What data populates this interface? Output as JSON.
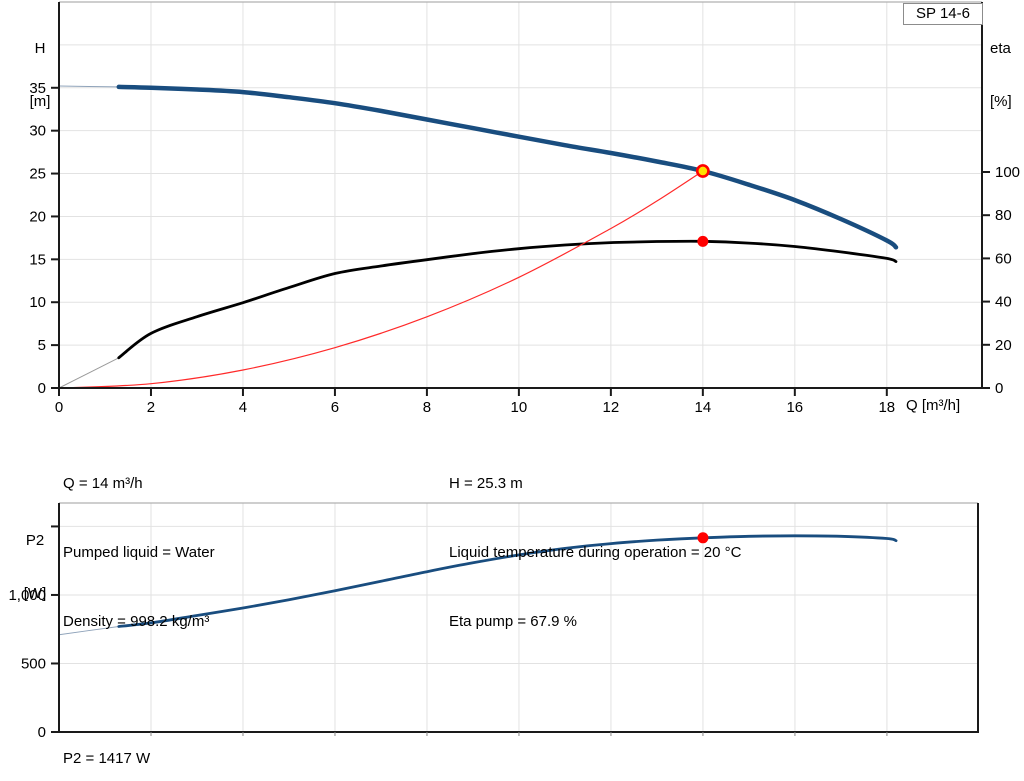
{
  "badge_label": "SP 14-6",
  "axis_titles": {
    "head_left": [
      "H",
      "[m]"
    ],
    "head_right": [
      "eta",
      "[%]"
    ],
    "head_x": "Q [m³/h]",
    "p2_left": [
      "P2",
      "[W]"
    ]
  },
  "annotations": {
    "left": [
      "Q = 14 m³/h",
      "Pumped liquid = Water",
      "Density = 998.2 kg/m³"
    ],
    "right": [
      "H = 25.3 m",
      "Liquid temperature during operation = 20 °C",
      "Eta pump = 67.9 %"
    ],
    "p2_result": "P2 = 1417 W"
  },
  "colors": {
    "curve_blue": "#194d7f",
    "curve_thin": "#8fa3ba",
    "curve_black": "#000000",
    "curve_black_thin": "#9a9a9a",
    "system_red": "#ff2a2a",
    "marker_red": "#ff0000",
    "marker_yellow": "#ffe000",
    "gridline": "#e2e2e2",
    "plot_top_border": "#b0b0b0",
    "axis": "#1a1a1a"
  },
  "chart_data": [
    {
      "type": "line",
      "title": "SP 14-6",
      "x": {
        "label": "Q [m³/h]",
        "min": 0,
        "max": 20.07,
        "show_tick_labels": true,
        "ticks": [
          {
            "v": 0,
            "t": "0"
          },
          {
            "v": 2,
            "t": "2"
          },
          {
            "v": 4,
            "t": "4"
          },
          {
            "v": 6,
            "t": "6"
          },
          {
            "v": 8,
            "t": "8"
          },
          {
            "v": 10,
            "t": "10"
          },
          {
            "v": 12,
            "t": "12"
          },
          {
            "v": 14,
            "t": "14"
          },
          {
            "v": 16,
            "t": "16"
          },
          {
            "v": 18,
            "t": "18"
          }
        ],
        "grid": [
          2,
          4,
          6,
          8,
          10,
          12,
          14,
          16,
          18
        ]
      },
      "left": {
        "label": "H [m]",
        "min": 0,
        "max": 45,
        "ticks": [
          {
            "v": 0,
            "t": "0"
          },
          {
            "v": 5,
            "t": "5"
          },
          {
            "v": 10,
            "t": "10"
          },
          {
            "v": 15,
            "t": "15"
          },
          {
            "v": 20,
            "t": "20"
          },
          {
            "v": 25,
            "t": "25"
          },
          {
            "v": 30,
            "t": "30"
          },
          {
            "v": 35,
            "t": "35"
          }
        ],
        "grid": [
          5,
          10,
          15,
          20,
          25,
          30,
          35,
          40
        ]
      },
      "right": {
        "label": "eta [%]",
        "min": 0,
        "max": 178.7,
        "ticks": [
          {
            "v": 0,
            "t": "0"
          },
          {
            "v": 20,
            "t": "20"
          },
          {
            "v": 40,
            "t": "40"
          },
          {
            "v": 60,
            "t": "60"
          },
          {
            "v": 80,
            "t": "80"
          },
          {
            "v": 100,
            "t": "100"
          }
        ],
        "grid": []
      },
      "series": [
        {
          "name": "head-curve",
          "axis": "left",
          "color": "#194d7f",
          "thin_color": "#8fa3ba",
          "width": 4.5,
          "thin_until": 1.3,
          "points": [
            [
              0,
              35.2
            ],
            [
              1.3,
              35.1
            ],
            [
              2,
              35.0
            ],
            [
              3,
              34.8
            ],
            [
              4,
              34.5
            ],
            [
              5,
              33.9
            ],
            [
              6,
              33.2
            ],
            [
              7,
              32.3
            ],
            [
              8,
              31.3
            ],
            [
              9,
              30.3
            ],
            [
              10,
              29.3
            ],
            [
              11,
              28.3
            ],
            [
              12,
              27.4
            ],
            [
              13,
              26.4
            ],
            [
              14,
              25.3
            ],
            [
              15,
              23.7
            ],
            [
              16,
              21.9
            ],
            [
              17,
              19.7
            ],
            [
              18,
              17.2
            ],
            [
              18.2,
              16.4
            ]
          ]
        },
        {
          "name": "eta-curve",
          "axis": "right",
          "color": "#000000",
          "thin_color": "#9a9a9a",
          "width": 2.8,
          "thin_until": 1.3,
          "points": [
            [
              0,
              0
            ],
            [
              1.3,
              14
            ],
            [
              2,
              25.3
            ],
            [
              3,
              33
            ],
            [
              4,
              39.5
            ],
            [
              5,
              46.5
            ],
            [
              6,
              53
            ],
            [
              7,
              56.5
            ],
            [
              8,
              59.4
            ],
            [
              9,
              62.2
            ],
            [
              10,
              64.5
            ],
            [
              11,
              66.2
            ],
            [
              12,
              67.3
            ],
            [
              13,
              67.8
            ],
            [
              14,
              67.9
            ],
            [
              15,
              67.1
            ],
            [
              16,
              65.5
            ],
            [
              17,
              63
            ],
            [
              18,
              60
            ],
            [
              18.2,
              58.5
            ]
          ]
        },
        {
          "name": "system-curve",
          "axis": "left",
          "color": "#ff2a2a",
          "width": 1.2,
          "points": [
            [
              0,
              0
            ],
            [
              2,
              0.5
            ],
            [
              4,
              2.1
            ],
            [
              6,
              4.7
            ],
            [
              8,
              8.3
            ],
            [
              10,
              12.9
            ],
            [
              12,
              18.6
            ],
            [
              13,
              21.8
            ],
            [
              14,
              25.3
            ]
          ]
        }
      ],
      "markers": [
        {
          "name": "duty-point",
          "x": 14,
          "v": 25.3,
          "axis": "left",
          "r": 5.6,
          "fill": "#ffe000",
          "stroke": "#ff0000",
          "stroke_width": 2.6
        },
        {
          "name": "eta-point",
          "x": 14,
          "v": 67.9,
          "axis": "right",
          "r": 5.5,
          "fill": "#ff0000"
        }
      ]
    },
    {
      "type": "line",
      "title": "",
      "x": {
        "label": "",
        "min": 0,
        "max": 19.98,
        "show_tick_labels": false,
        "ticks": [],
        "grid": [
          2,
          4,
          6,
          8,
          10,
          12,
          14,
          16,
          18
        ]
      },
      "left": {
        "label": "P2 [W]",
        "min": 0,
        "max": 1671,
        "ticks": [
          {
            "v": 0,
            "t": "0"
          },
          {
            "v": 500,
            "t": "500"
          },
          {
            "v": 1000,
            "t": "1,000"
          },
          {
            "v": 1500,
            "t": ""
          }
        ],
        "grid": [
          500,
          1000,
          1500
        ]
      },
      "series": [
        {
          "name": "p2-curve",
          "axis": "left",
          "color": "#194d7f",
          "thin_color": "#8fa3ba",
          "width": 2.8,
          "thin_until": 1.3,
          "points": [
            [
              0,
              710
            ],
            [
              1.3,
              770
            ],
            [
              2,
              796
            ],
            [
              3,
              850
            ],
            [
              4,
              905
            ],
            [
              5,
              965
            ],
            [
              6,
              1031
            ],
            [
              7,
              1100
            ],
            [
              8,
              1170
            ],
            [
              9,
              1235
            ],
            [
              10,
              1292
            ],
            [
              11,
              1340
            ],
            [
              12,
              1375
            ],
            [
              13,
              1400
            ],
            [
              14,
              1417
            ],
            [
              15,
              1428
            ],
            [
              16,
              1432
            ],
            [
              17,
              1428
            ],
            [
              18,
              1412
            ],
            [
              18.2,
              1396
            ]
          ]
        }
      ],
      "markers": [
        {
          "name": "p2-point",
          "x": 14,
          "v": 1417,
          "axis": "left",
          "r": 5.5,
          "fill": "#ff0000"
        }
      ]
    }
  ]
}
